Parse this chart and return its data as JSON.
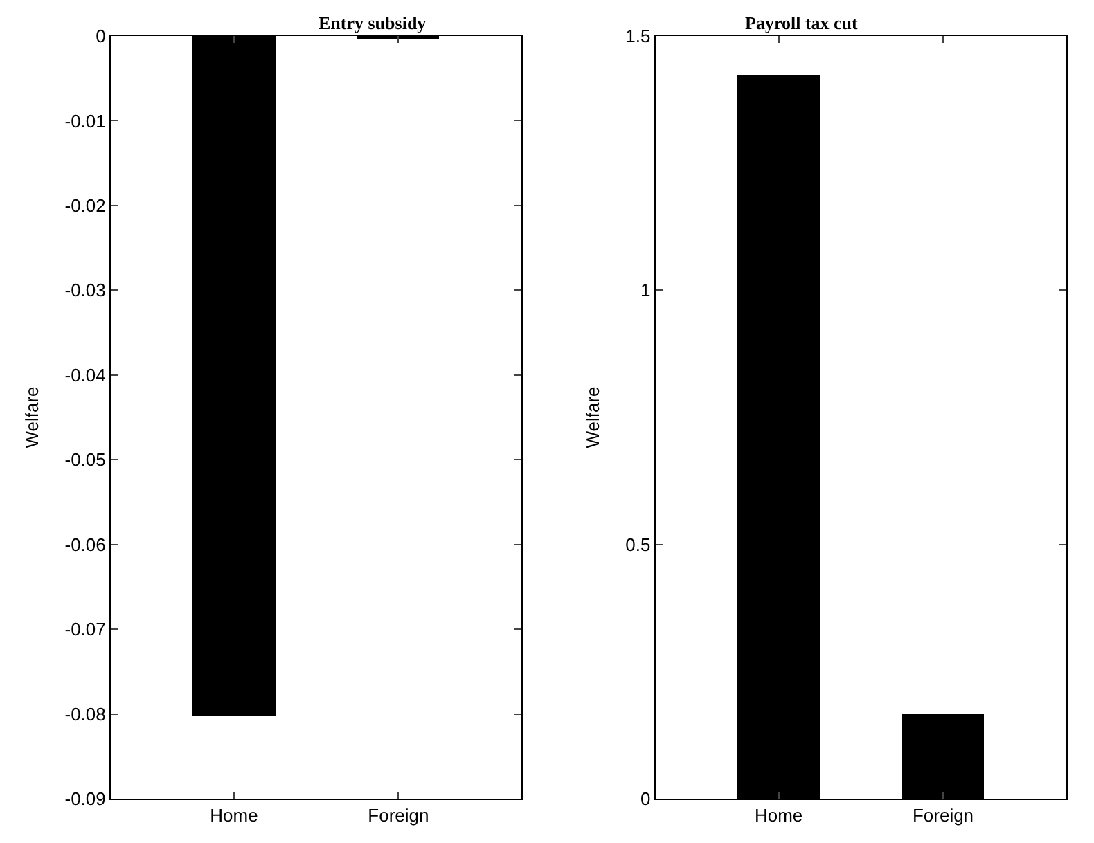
{
  "chart_data": [
    {
      "type": "bar",
      "title": "Entry subsidy",
      "ylabel": "Welfare",
      "categories": [
        "Home",
        "Foreign"
      ],
      "values": [
        -0.0802,
        -0.0002
      ],
      "color": "#000000",
      "ylim": [
        -0.09,
        0
      ],
      "yticks": [
        -0.09,
        -0.08,
        -0.07,
        -0.06,
        -0.05,
        -0.04,
        -0.03,
        -0.02,
        -0.01,
        0
      ]
    },
    {
      "type": "bar",
      "title": "Payroll tax cut",
      "ylabel": "Welfare",
      "categories": [
        "Home",
        "Foreign"
      ],
      "values": [
        1.423,
        0.165
      ],
      "color": "#000000",
      "ylim": [
        0,
        1.5
      ],
      "yticks": [
        0,
        0.5,
        1,
        1.5
      ]
    }
  ]
}
